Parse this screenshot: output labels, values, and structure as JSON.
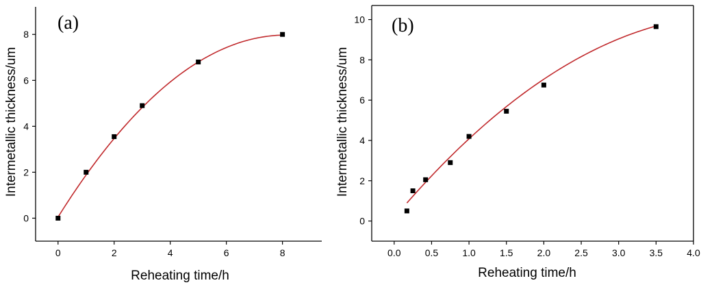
{
  "chart_data": [
    {
      "type": "scatter",
      "panel_label": "(a)",
      "xlabel": "Reheating time/h",
      "ylabel": "Intermetallic thickness/um",
      "xlim": [
        -0.8,
        9.4
      ],
      "ylim": [
        -1.0,
        9.2
      ],
      "xticks": [
        0,
        2,
        4,
        6,
        8
      ],
      "yticks": [
        0,
        2,
        4,
        6,
        8
      ],
      "xtick_labels": [
        "0",
        "2",
        "4",
        "6",
        "8"
      ],
      "ytick_labels": [
        "0",
        "2",
        "4",
        "6",
        "8"
      ],
      "grid": false,
      "axes_box": "left-bottom",
      "marker_color": "#000000",
      "fit_color": "#c0282b",
      "series": [
        {
          "x": [
            0,
            1,
            2,
            3,
            5,
            8
          ],
          "y": [
            0,
            2.0,
            3.55,
            4.9,
            6.8,
            8.0
          ]
        }
      ],
      "fit": {
        "kind": "quadratic",
        "x_range": [
          0,
          8
        ],
        "coeffs": [
          0.05,
          1.95,
          -0.12
        ]
      }
    },
    {
      "type": "scatter",
      "panel_label": "(b)",
      "xlabel": "Reheating time/h",
      "ylabel": "Intermetallic thickness/um",
      "xlim": [
        -0.3,
        4.0
      ],
      "ylim": [
        -1.0,
        10.7
      ],
      "xticks": [
        0.0,
        0.5,
        1.0,
        1.5,
        2.0,
        2.5,
        3.0,
        3.5,
        4.0
      ],
      "yticks": [
        0,
        2,
        4,
        6,
        8,
        10
      ],
      "xtick_labels": [
        "0.0",
        "0.5",
        "1.0",
        "1.5",
        "2.0",
        "2.5",
        "3.0",
        "3.5",
        "4.0"
      ],
      "ytick_labels": [
        "0",
        "2",
        "4",
        "6",
        "8",
        "10"
      ],
      "grid": false,
      "axes_box": "full",
      "marker_color": "#000000",
      "fit_color": "#c0282b",
      "series": [
        {
          "x": [
            0.17,
            0.25,
            0.42,
            0.75,
            1.0,
            1.5,
            2.0,
            3.5
          ],
          "y": [
            0.5,
            1.5,
            2.05,
            2.9,
            4.2,
            5.45,
            6.75,
            9.65
          ]
        }
      ],
      "fit": {
        "kind": "quadratic",
        "x_range": [
          0.17,
          3.5
        ],
        "coeffs": [
          0.16,
          4.4,
          -0.48
        ]
      }
    }
  ]
}
